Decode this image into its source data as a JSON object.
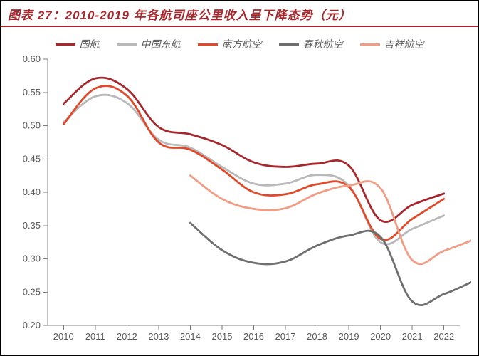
{
  "title": "图表 27：2010-2019 年各航司座公里收入呈下降态势（元）",
  "chart": {
    "type": "line",
    "background_color": "#ffffff",
    "title_color": "#a8272d",
    "title_fontsize": 17,
    "axis_color": "#808080",
    "tick_color": "#595959",
    "tick_fontsize": 13,
    "line_width": 2.8,
    "x": {
      "categories": [
        "2010",
        "2011",
        "2012",
        "2013",
        "2014",
        "2015",
        "2016",
        "2017",
        "2018",
        "2019",
        "2020",
        "2021",
        "2022"
      ]
    },
    "y": {
      "min": 0.2,
      "max": 0.6,
      "step": 0.05,
      "decimals": 2
    },
    "legend": {
      "position": "top",
      "fontsize": 14,
      "item_gap": 24,
      "swatch_width": 28
    },
    "series": [
      {
        "name": "国航",
        "color": "#a8272d",
        "start_index": 0,
        "values": [
          0.533,
          0.571,
          0.555,
          0.498,
          0.487,
          0.471,
          0.445,
          0.438,
          0.443,
          0.44,
          0.358,
          0.381,
          0.398
        ]
      },
      {
        "name": "中国东航",
        "color": "#b9b9b9",
        "start_index": 0,
        "values": [
          0.505,
          0.544,
          0.534,
          0.479,
          0.467,
          0.438,
          0.413,
          0.413,
          0.426,
          0.41,
          0.325,
          0.345,
          0.365
        ]
      },
      {
        "name": "南方航空",
        "color": "#e04a2a",
        "start_index": 0,
        "values": [
          0.502,
          0.556,
          0.545,
          0.475,
          0.464,
          0.434,
          0.4,
          0.397,
          0.412,
          0.408,
          0.33,
          0.36,
          0.39
        ]
      },
      {
        "name": "春秋航空",
        "color": "#6f6f6f",
        "start_index": 4,
        "values": [
          0.354,
          0.313,
          0.294,
          0.296,
          0.32,
          0.335,
          0.333,
          0.236,
          0.247,
          0.268
        ]
      },
      {
        "name": "吉祥航空",
        "color": "#f19d86",
        "start_index": 4,
        "values": [
          0.425,
          0.39,
          0.375,
          0.376,
          0.398,
          0.41,
          0.406,
          0.298,
          0.312,
          0.33
        ]
      }
    ]
  }
}
